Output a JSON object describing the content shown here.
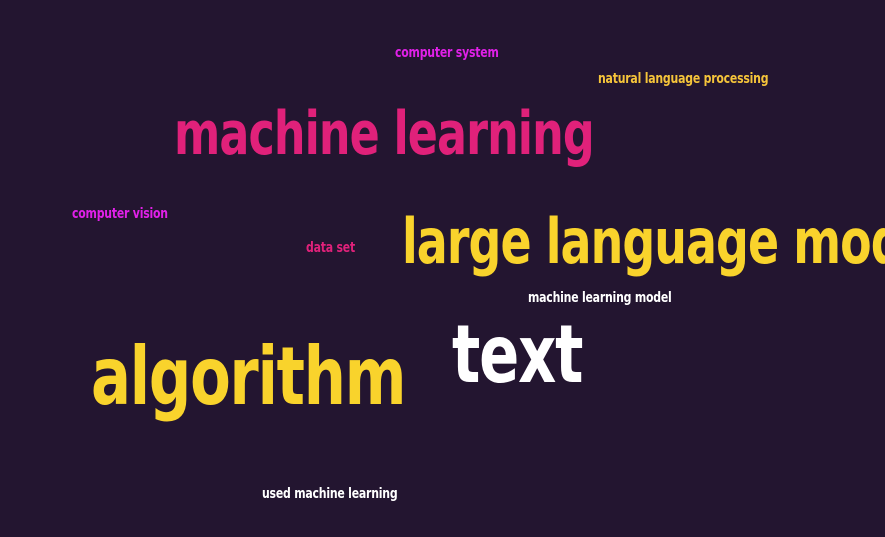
{
  "words": [
    {
      "id": "computer-system",
      "text": "computer system",
      "color": "#e020e8"
    },
    {
      "id": "natural-language-processing",
      "text": "natural language processing",
      "color": "#f5c43a"
    },
    {
      "id": "machine-learning",
      "text": "machine learning",
      "color": "#e0217a"
    },
    {
      "id": "computer-vision",
      "text": "computer vision",
      "color": "#e020e8"
    },
    {
      "id": "data-set",
      "text": "data set",
      "color": "#e0217a"
    },
    {
      "id": "large-language-model",
      "text": "large language model",
      "color": "#f9d32c"
    },
    {
      "id": "machine-learning-model",
      "text": "machine learning model",
      "color": "#ffffff"
    },
    {
      "id": "text",
      "text": "text",
      "color": "#ffffff"
    },
    {
      "id": "algorithm",
      "text": "algorithm",
      "color": "#f9d32c"
    },
    {
      "id": "used-machine-learning",
      "text": "used machine learning",
      "color": "#ffffff"
    }
  ]
}
